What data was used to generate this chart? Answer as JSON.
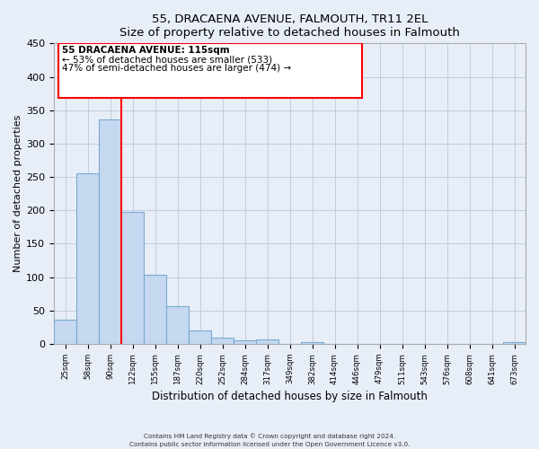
{
  "title": "55, DRACAENA AVENUE, FALMOUTH, TR11 2EL",
  "subtitle": "Size of property relative to detached houses in Falmouth",
  "xlabel": "Distribution of detached houses by size in Falmouth",
  "ylabel": "Number of detached properties",
  "bin_labels": [
    "25sqm",
    "58sqm",
    "90sqm",
    "122sqm",
    "155sqm",
    "187sqm",
    "220sqm",
    "252sqm",
    "284sqm",
    "317sqm",
    "349sqm",
    "382sqm",
    "414sqm",
    "446sqm",
    "479sqm",
    "511sqm",
    "543sqm",
    "576sqm",
    "608sqm",
    "641sqm",
    "673sqm"
  ],
  "bar_heights": [
    36,
    256,
    336,
    197,
    104,
    57,
    20,
    10,
    5,
    6,
    0,
    2,
    0,
    0,
    0,
    0,
    0,
    0,
    0,
    0,
    3
  ],
  "bar_color": "#c5d8f0",
  "bar_edge_color": "#7aaad0",
  "vline_color": "red",
  "annotation_title": "55 DRACAENA AVENUE: 115sqm",
  "annotation_line1": "← 53% of detached houses are smaller (533)",
  "annotation_line2": "47% of semi-detached houses are larger (474) →",
  "annotation_box_edgecolor": "red",
  "ylim": [
    0,
    450
  ],
  "yticks": [
    0,
    50,
    100,
    150,
    200,
    250,
    300,
    350,
    400,
    450
  ],
  "footnote1": "Contains HM Land Registry data © Crown copyright and database right 2024.",
  "footnote2": "Contains public sector information licensed under the Open Government Licence v3.0.",
  "bg_color": "#e8eef8",
  "grid_color": "#c0cce0"
}
